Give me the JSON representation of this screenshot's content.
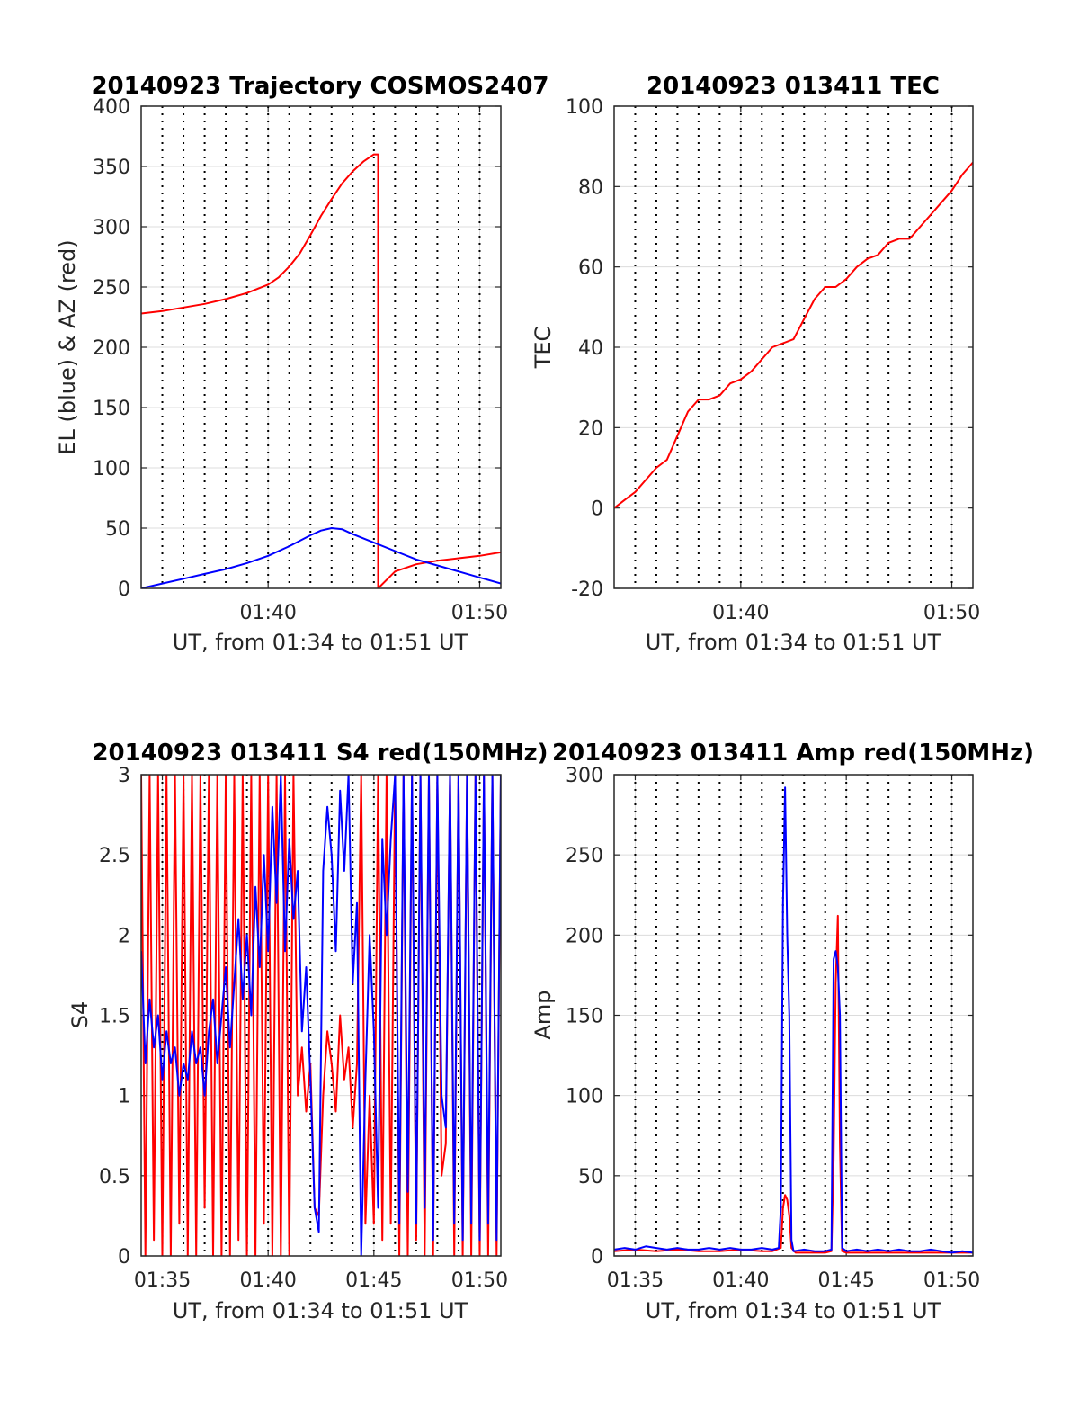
{
  "colors": {
    "red": "#ff0000",
    "blue": "#0000ff",
    "axis": "#262626",
    "grid": "#dcdcdc"
  },
  "chart_data": [
    {
      "type": "line",
      "title": "20140923 Trajectory COSMOS2407",
      "xlabel": "UT, from 01:34 to 01:51 UT",
      "ylabel": "EL (blue) & AZ (red)",
      "xlim": [
        94.0,
        111.0
      ],
      "ylim": [
        0,
        400
      ],
      "yticks": [
        0,
        50,
        100,
        150,
        200,
        250,
        300,
        350,
        400
      ],
      "ytick_labels": [
        "0",
        "50",
        "100",
        "150",
        "200",
        "250",
        "300",
        "350",
        "400"
      ],
      "xticks": [
        100,
        110
      ],
      "xtick_labels": [
        "01:40",
        "01:50"
      ],
      "grid": true,
      "series": [
        {
          "color": "red",
          "x": [
            94.0,
            95,
            96,
            97,
            98,
            99,
            100,
            100.5,
            101,
            101.5,
            102,
            102.5,
            103,
            103.5,
            104,
            104.5,
            105,
            105.2,
            105.2,
            106,
            107,
            108,
            109,
            110,
            111
          ],
          "y": [
            228,
            230,
            233,
            236,
            240,
            245,
            252,
            258,
            267,
            278,
            293,
            309,
            323,
            336,
            346,
            354,
            360,
            360,
            0,
            14,
            20,
            23,
            25,
            27,
            30
          ]
        },
        {
          "color": "blue",
          "x": [
            94.0,
            95,
            96,
            97,
            98,
            99,
            100,
            101,
            102,
            102.5,
            103,
            103.5,
            104,
            105,
            106,
            107,
            108,
            109,
            110,
            111
          ],
          "y": [
            0,
            4,
            8,
            12,
            16,
            21,
            27,
            35,
            44,
            48,
            50,
            49,
            45,
            38,
            31,
            24,
            19,
            14,
            9,
            4
          ]
        }
      ]
    },
    {
      "type": "line",
      "title": "20140923 013411 TEC",
      "xlabel": "UT, from 01:34 to 01:51 UT",
      "ylabel": "TEC",
      "xlim": [
        94.0,
        111.0
      ],
      "ylim": [
        -20,
        100
      ],
      "yticks": [
        -20,
        0,
        20,
        40,
        60,
        80,
        100
      ],
      "ytick_labels": [
        "-20",
        "0",
        "20",
        "40",
        "60",
        "80",
        "100"
      ],
      "xticks": [
        100,
        110
      ],
      "xtick_labels": [
        "01:40",
        "01:50"
      ],
      "grid": true,
      "series": [
        {
          "color": "red",
          "x": [
            94.0,
            94.5,
            95,
            95.5,
            96,
            96.5,
            97,
            97.5,
            98,
            98.5,
            99,
            99.5,
            100,
            100.5,
            101,
            101.5,
            102,
            102.5,
            103,
            103.5,
            104,
            104.5,
            105,
            105.5,
            106,
            106.5,
            107,
            107.5,
            108,
            108.5,
            109,
            109.5,
            110,
            110.5,
            111
          ],
          "y": [
            0,
            2,
            4,
            7,
            10,
            12,
            18,
            24,
            27,
            27,
            28,
            31,
            32,
            34,
            37,
            40,
            41,
            42,
            47,
            52,
            55,
            55,
            57,
            60,
            62,
            63,
            66,
            67,
            67,
            70,
            73,
            76,
            79,
            83,
            86
          ]
        }
      ]
    },
    {
      "type": "line",
      "title": "20140923 013411 S4 red(150MHz)",
      "xlabel": "UT, from 01:34 to 01:51 UT",
      "ylabel": "S4",
      "xlim": [
        94.0,
        111.0
      ],
      "ylim": [
        0,
        3
      ],
      "yticks": [
        0,
        0.5,
        1,
        1.5,
        2,
        2.5,
        3
      ],
      "ytick_labels": [
        "0",
        "0.5",
        "1",
        "1.5",
        "2",
        "2.5",
        "3"
      ],
      "xticks": [
        95,
        100,
        105,
        110
      ],
      "xtick_labels": [
        "01:35",
        "01:40",
        "01:45",
        "01:50"
      ],
      "grid": true,
      "series": [
        {
          "color": "red",
          "x": [
            94.0,
            94.2,
            94.4,
            94.6,
            94.8,
            95.0,
            95.2,
            95.4,
            95.6,
            95.8,
            96.0,
            96.2,
            96.4,
            96.6,
            96.8,
            97.0,
            97.2,
            97.4,
            97.6,
            97.8,
            98.0,
            98.2,
            98.4,
            98.6,
            98.8,
            99.0,
            99.2,
            99.4,
            99.6,
            99.8,
            100.0,
            100.2,
            100.4,
            100.6,
            100.8,
            101.0,
            101.2,
            101.4,
            101.6,
            101.8,
            102.0,
            102.2,
            102.4,
            102.6,
            102.8,
            103.0,
            103.2,
            103.4,
            103.6,
            103.8,
            104.0,
            104.2,
            104.4,
            104.6,
            104.8,
            105.0,
            105.2,
            105.4,
            105.6,
            105.8,
            106.0,
            106.2,
            106.4,
            106.6,
            106.8,
            107.0,
            107.2,
            107.4,
            107.6,
            107.8,
            108.0,
            108.2,
            108.4,
            108.6,
            108.8,
            109.0,
            109.2,
            109.4,
            109.6,
            109.8,
            110.0,
            110.2,
            110.4,
            110.6,
            110.8,
            111.0
          ],
          "y": [
            3,
            0,
            3,
            0.1,
            3,
            0,
            3,
            0,
            3,
            0.2,
            3,
            0,
            3,
            0,
            3,
            0.3,
            3,
            0,
            3,
            0,
            3,
            0,
            3,
            0.1,
            3,
            0,
            3,
            0,
            3,
            0.2,
            3,
            0,
            3,
            0,
            3,
            0,
            3,
            1.0,
            1.3,
            0.9,
            1.2,
            0.3,
            0.25,
            1.0,
            1.4,
            1.2,
            0.9,
            1.5,
            1.1,
            1.3,
            0.8,
            1.2,
            3,
            0.2,
            1.0,
            0.2,
            3,
            0.1,
            3,
            0.2,
            3,
            0,
            3,
            0,
            3,
            0.1,
            3,
            0,
            3,
            0,
            3,
            0.5,
            0.7,
            3,
            0,
            3,
            0,
            3,
            0,
            3,
            0,
            3,
            0,
            3,
            0,
            3
          ]
        },
        {
          "color": "blue",
          "x": [
            94.0,
            94.2,
            94.4,
            94.6,
            94.8,
            95.0,
            95.2,
            95.4,
            95.6,
            95.8,
            96.0,
            96.2,
            96.4,
            96.6,
            96.8,
            97.0,
            97.2,
            97.4,
            97.6,
            97.8,
            98.0,
            98.2,
            98.4,
            98.6,
            98.8,
            99.0,
            99.2,
            99.4,
            99.6,
            99.8,
            100.0,
            100.2,
            100.4,
            100.6,
            100.8,
            101.0,
            101.2,
            101.4,
            101.6,
            101.8,
            102.0,
            102.2,
            102.4,
            102.6,
            102.8,
            103.0,
            103.2,
            103.4,
            103.6,
            103.8,
            104.0,
            104.2,
            104.4,
            104.6,
            104.8,
            105.0,
            105.2,
            105.4,
            105.6,
            105.8,
            106.0,
            106.2,
            106.4,
            106.6,
            106.8,
            107.0,
            107.2,
            107.4,
            107.6,
            107.8,
            108.0,
            108.2,
            108.4,
            108.6,
            108.8,
            109.0,
            109.2,
            109.4,
            109.6,
            109.8,
            110.0,
            110.2,
            110.4,
            110.6,
            110.8,
            111.0
          ],
          "y": [
            1.9,
            1.2,
            1.6,
            1.3,
            1.5,
            1.1,
            1.4,
            1.2,
            1.3,
            1.0,
            1.2,
            1.1,
            1.4,
            1.2,
            1.3,
            1.0,
            1.4,
            1.6,
            1.2,
            1.5,
            1.8,
            1.3,
            1.7,
            2.1,
            1.6,
            2.0,
            1.5,
            2.3,
            1.8,
            2.5,
            1.9,
            2.8,
            2.2,
            3,
            1.9,
            2.6,
            2.1,
            2.4,
            1.4,
            1.8,
            1.1,
            0.3,
            0.15,
            2.4,
            2.8,
            2.5,
            1.9,
            2.9,
            2.4,
            3,
            1.7,
            2.2,
            0.0,
            1.1,
            2.0,
            1.4,
            0.3,
            2.6,
            2.0,
            2.6,
            3,
            0.2,
            3,
            0.4,
            3,
            0.2,
            3,
            0.3,
            3,
            0.1,
            3,
            1.0,
            0.8,
            3,
            0.2,
            3,
            0.1,
            3,
            0.2,
            3,
            0.1,
            3,
            0.2,
            3,
            0.1,
            3
          ]
        }
      ]
    },
    {
      "type": "line",
      "title": "20140923 013411 Amp red(150MHz)",
      "xlabel": "UT, from 01:34 to 01:51 UT",
      "ylabel": "Amp",
      "xlim": [
        94.0,
        111.0
      ],
      "ylim": [
        0,
        300
      ],
      "yticks": [
        0,
        50,
        100,
        150,
        200,
        250,
        300
      ],
      "ytick_labels": [
        "0",
        "50",
        "100",
        "150",
        "200",
        "250",
        "300"
      ],
      "xticks": [
        95,
        100,
        105,
        110
      ],
      "xtick_labels": [
        "01:35",
        "01:40",
        "01:45",
        "01:50"
      ],
      "grid": true,
      "series": [
        {
          "color": "red",
          "x": [
            94.0,
            95,
            96,
            97,
            98,
            99,
            100,
            101,
            101.5,
            101.9,
            102.0,
            102.1,
            102.2,
            102.3,
            102.4,
            102.6,
            103,
            104,
            104.3,
            104.4,
            104.5,
            104.6,
            104.7,
            104.8,
            105.0,
            106,
            107,
            108,
            109,
            110,
            111
          ],
          "y": [
            3,
            4,
            3,
            4,
            3,
            3,
            4,
            3,
            3,
            5,
            30,
            38,
            35,
            25,
            5,
            2,
            2,
            2,
            3,
            60,
            170,
            212,
            70,
            3,
            2,
            2,
            2,
            2,
            2,
            2,
            2
          ]
        },
        {
          "color": "blue",
          "x": [
            94.0,
            94.5,
            95,
            95.5,
            96,
            96.5,
            97,
            97.5,
            98,
            98.5,
            99,
            99.5,
            100,
            100.5,
            101,
            101.5,
            101.8,
            101.9,
            102.0,
            102.1,
            102.2,
            102.3,
            102.4,
            102.5,
            103,
            103.5,
            104,
            104.3,
            104.4,
            104.5,
            104.6,
            104.7,
            104.8,
            105.0,
            105.5,
            106,
            106.5,
            107,
            107.5,
            108,
            108.5,
            109,
            109.5,
            110,
            110.5,
            111
          ],
          "y": [
            4,
            5,
            4,
            6,
            5,
            4,
            5,
            4,
            4,
            5,
            4,
            5,
            4,
            4,
            5,
            4,
            5,
            30,
            220,
            292,
            200,
            150,
            10,
            3,
            4,
            3,
            3,
            4,
            185,
            190,
            180,
            150,
            5,
            3,
            4,
            3,
            4,
            3,
            4,
            3,
            3,
            4,
            3,
            2,
            3,
            2
          ]
        }
      ]
    }
  ]
}
